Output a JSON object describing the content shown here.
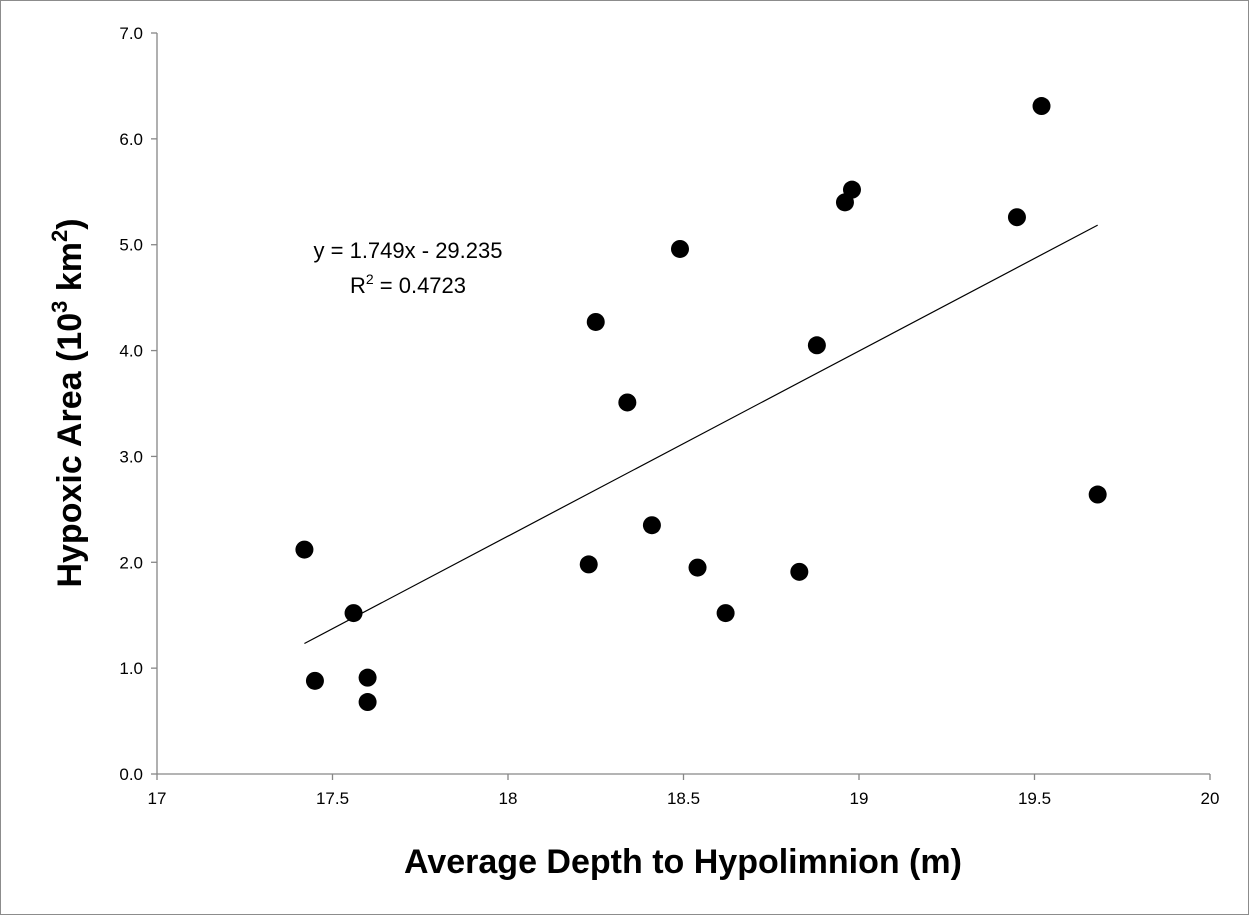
{
  "chart_data": {
    "type": "scatter",
    "title": "",
    "xlabel": "Average Depth to  Hypolimnion (m)",
    "ylabel_main": "Hypoxic Area (10",
    "ylabel_sup": "3",
    "ylabel_mid": " km",
    "ylabel_sup2": "2",
    "ylabel_end": ")",
    "xlim": [
      17,
      20
    ],
    "ylim": [
      0,
      7
    ],
    "x_ticks": [
      "17",
      "17.5",
      "18",
      "18.5",
      "19",
      "19.5",
      "20"
    ],
    "y_ticks": [
      "0.0",
      "1.0",
      "2.0",
      "3.0",
      "4.0",
      "5.0",
      "6.0",
      "7.0"
    ],
    "grid": false,
    "legend": "none",
    "marker_color": "#000000",
    "points": [
      {
        "x": 17.42,
        "y": 2.12
      },
      {
        "x": 17.45,
        "y": 0.88
      },
      {
        "x": 17.56,
        "y": 1.52
      },
      {
        "x": 17.6,
        "y": 0.91
      },
      {
        "x": 17.6,
        "y": 0.68
      },
      {
        "x": 18.23,
        "y": 1.98
      },
      {
        "x": 18.25,
        "y": 4.27
      },
      {
        "x": 18.34,
        "y": 3.51
      },
      {
        "x": 18.41,
        "y": 2.35
      },
      {
        "x": 18.49,
        "y": 4.96
      },
      {
        "x": 18.54,
        "y": 1.95
      },
      {
        "x": 18.62,
        "y": 1.52
      },
      {
        "x": 18.83,
        "y": 1.91
      },
      {
        "x": 18.88,
        "y": 4.05
      },
      {
        "x": 18.96,
        "y": 5.4
      },
      {
        "x": 18.98,
        "y": 5.52
      },
      {
        "x": 19.45,
        "y": 5.26
      },
      {
        "x": 19.52,
        "y": 6.31
      },
      {
        "x": 19.68,
        "y": 2.64
      }
    ],
    "trendline": {
      "slope": 1.749,
      "intercept": -29.235,
      "x_range": [
        17.42,
        19.68
      ],
      "equation_label": "y = 1.749x - 29.235",
      "r2_prefix": "R",
      "r2_sup": "2",
      "r2_value": " = 0.4723"
    }
  }
}
